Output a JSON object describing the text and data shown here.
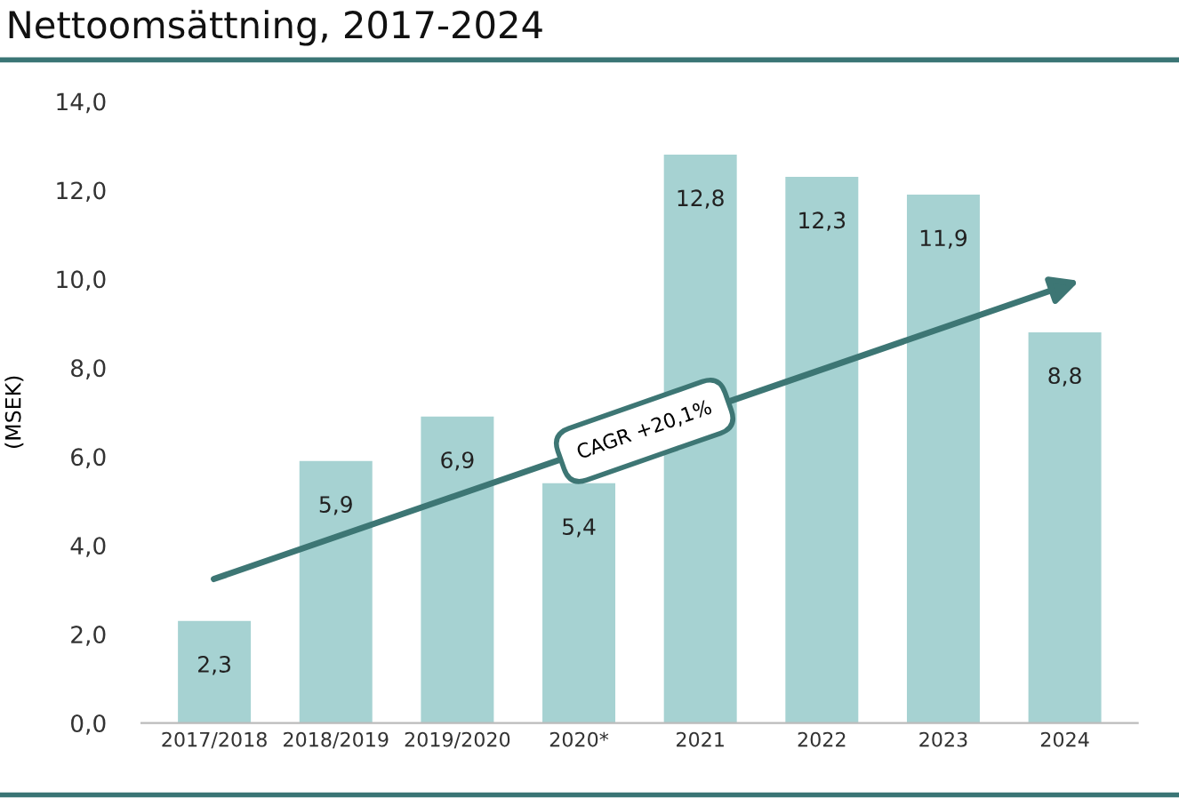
{
  "chart_data": {
    "type": "bar",
    "title": "Nettoomsättning, 2017-2024",
    "ylabel": "(MSEK)",
    "categories": [
      "2017/2018",
      "2018/2019",
      "2019/2020",
      "2020*",
      "2021",
      "2022",
      "2023",
      "2024"
    ],
    "values": [
      2.3,
      5.9,
      6.9,
      5.4,
      12.8,
      12.3,
      11.9,
      8.8
    ],
    "value_labels": [
      "2,3",
      "5,9",
      "6,9",
      "5,4",
      "12,8",
      "12,3",
      "11,9",
      "8,8"
    ],
    "color": "#a6d2d2",
    "ylim": [
      0,
      14
    ],
    "yticks": [
      {
        "value": 0,
        "label": "0,0"
      },
      {
        "value": 2,
        "label": "2,0"
      },
      {
        "value": 4,
        "label": "4,0"
      },
      {
        "value": 6,
        "label": "6,0"
      },
      {
        "value": 8,
        "label": "8,0"
      },
      {
        "value": 10,
        "label": "10,0"
      },
      {
        "value": 12,
        "label": "12,0"
      },
      {
        "value": 14,
        "label": "14,0"
      }
    ],
    "grid": false,
    "legend": false,
    "annotations": [
      "CAGR +20,1%"
    ]
  }
}
